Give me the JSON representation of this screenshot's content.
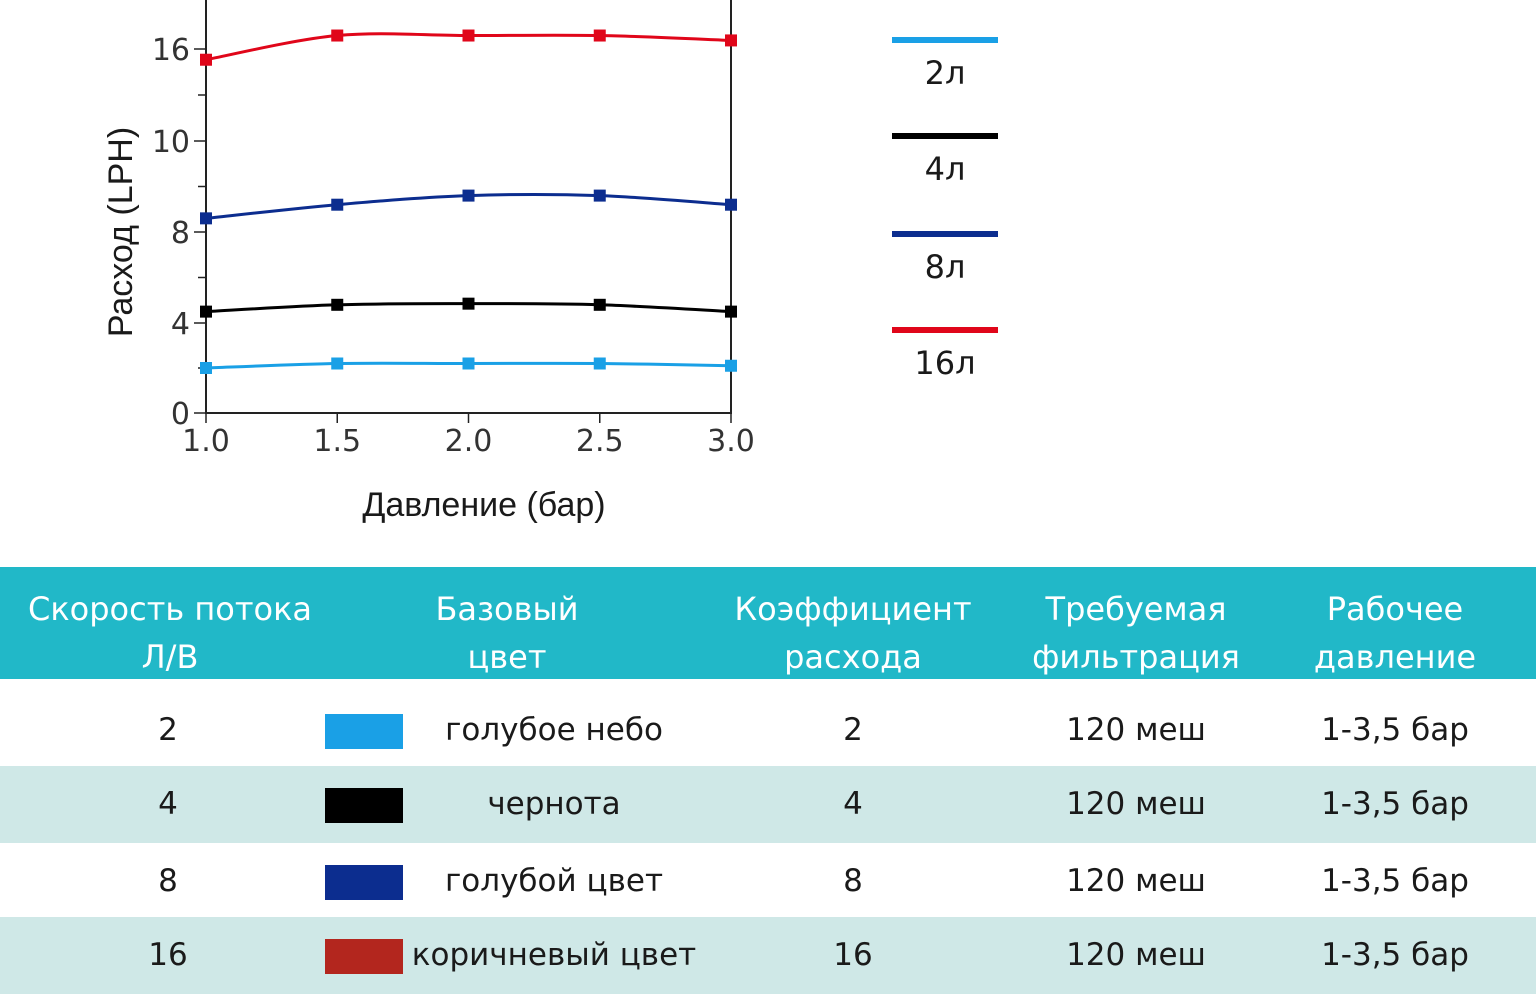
{
  "colors": {
    "header_bg": "#21b8c8",
    "row_alt_bg": "#cfe8e7",
    "series_2": "#1aa0e6",
    "series_4": "#000000",
    "series_8": "#0c2d8f",
    "series_16": "#e0061a"
  },
  "chart_data": {
    "type": "line",
    "xlabel": "Давление (бар)",
    "ylabel": "Расход (LPH)",
    "x": [
      1.0,
      1.5,
      2.0,
      2.5,
      3.0
    ],
    "x_tick_labels": [
      "1.0",
      "1.5",
      "2.0",
      "2.5",
      "3.0"
    ],
    "y_tick_labels": [
      "0",
      "4",
      "8",
      "10",
      "16"
    ],
    "grid": false,
    "legend_position": "right",
    "series": [
      {
        "name": "2л",
        "color": "#1aa0e6",
        "values": [
          2.0,
          2.2,
          2.2,
          2.2,
          2.1
        ]
      },
      {
        "name": "4л",
        "color": "#000000",
        "values": [
          4.5,
          4.8,
          4.85,
          4.8,
          4.5
        ]
      },
      {
        "name": "8л",
        "color": "#0c2d8f",
        "values": [
          8.3,
          8.6,
          8.8,
          8.8,
          8.6
        ]
      },
      {
        "name": "16л",
        "color": "#e0061a",
        "values": [
          15.3,
          16.55,
          16.55,
          16.55,
          16.35
        ]
      }
    ]
  },
  "table": {
    "headers": [
      "Скорость потока\nЛ/В",
      "Базовый\nцвет",
      "Коэффициент\nрасхода",
      "Требуемая\nфильтрация",
      "Рабочее\nдавление"
    ],
    "rows": [
      {
        "flow": "2",
        "swatch_color": "#1aa0e6",
        "color_name": "голубое небо",
        "coef": "2",
        "filtration": "120 меш",
        "pressure": "1-3,5 бар"
      },
      {
        "flow": "4",
        "swatch_color": "#000000",
        "color_name": "чернота",
        "coef": "4",
        "filtration": "120 меш",
        "pressure": "1-3,5 бар"
      },
      {
        "flow": "8",
        "swatch_color": "#0c2d8f",
        "color_name": "голубой цвет",
        "coef": "8",
        "filtration": "120 меш",
        "pressure": "1-3,5 бар"
      },
      {
        "flow": "16",
        "swatch_color": "#b3261e",
        "color_name": "коричневый цвет",
        "coef": "16",
        "filtration": "120 меш",
        "pressure": "1-3,5 бар"
      }
    ]
  }
}
